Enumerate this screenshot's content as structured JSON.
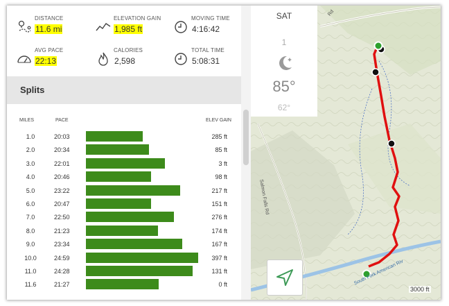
{
  "stats": {
    "distance": {
      "label": "DISTANCE",
      "value": "11.6 mi"
    },
    "elevation": {
      "label": "ELEVATION GAIN",
      "value": "1,985 ft"
    },
    "moving_time": {
      "label": "MOVING TIME",
      "value": "4:16:42"
    },
    "avg_pace": {
      "label": "AVG PACE",
      "value": "22:13"
    },
    "calories": {
      "label": "CALORIES",
      "value": "2,598"
    },
    "total_time": {
      "label": "TOTAL TIME",
      "value": "5:08:31"
    }
  },
  "splits": {
    "title": "Splits",
    "headers": {
      "miles": "MILES",
      "pace": "PACE",
      "elev": "ELEV GAIN"
    },
    "rows": [
      {
        "mile": "1.0",
        "pace": "20:03",
        "gain": "285 ft",
        "pace_seconds": 1203
      },
      {
        "mile": "2.0",
        "pace": "20:34",
        "gain": "85 ft",
        "pace_seconds": 1234
      },
      {
        "mile": "3.0",
        "pace": "22:01",
        "gain": "3 ft",
        "pace_seconds": 1321
      },
      {
        "mile": "4.0",
        "pace": "20:46",
        "gain": "98 ft",
        "pace_seconds": 1246
      },
      {
        "mile": "5.0",
        "pace": "23:22",
        "gain": "217 ft",
        "pace_seconds": 1402
      },
      {
        "mile": "6.0",
        "pace": "20:47",
        "gain": "151 ft",
        "pace_seconds": 1247
      },
      {
        "mile": "7.0",
        "pace": "22:50",
        "gain": "276 ft",
        "pace_seconds": 1370
      },
      {
        "mile": "8.0",
        "pace": "21:23",
        "gain": "174 ft",
        "pace_seconds": 1283
      },
      {
        "mile": "9.0",
        "pace": "23:34",
        "gain": "167 ft",
        "pace_seconds": 1414
      },
      {
        "mile": "10.0",
        "pace": "24:59",
        "gain": "397 ft",
        "pace_seconds": 1499
      },
      {
        "mile": "11.0",
        "pace": "24:28",
        "gain": "131 ft",
        "pace_seconds": 1468
      },
      {
        "mile": "11.6",
        "pace": "21:27",
        "gain": "0 ft",
        "pace_seconds": 1287
      }
    ]
  },
  "weather": {
    "day": "SAT",
    "number": "1",
    "high": "85°",
    "low": "62°"
  },
  "map": {
    "scale": "3000 ft",
    "road_label": "Salmon Falls Rd",
    "river_label": "South Fork American Riv",
    "top_label": "Rd"
  },
  "colors": {
    "bar": "#3d8b1b",
    "highlight": "#ffff00",
    "route": "#e01010",
    "start_marker": "#2ea02e"
  }
}
